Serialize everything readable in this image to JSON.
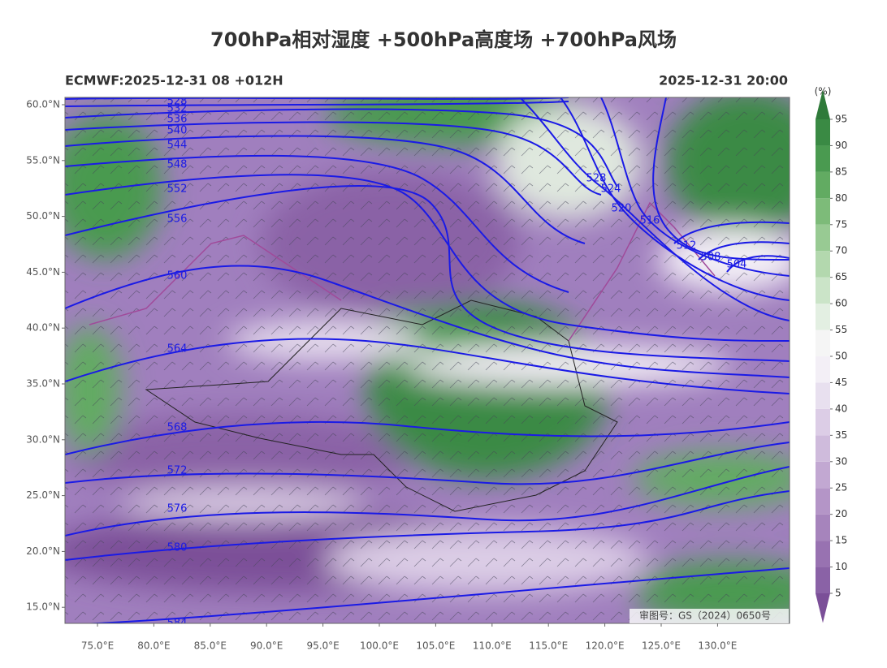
{
  "header": {
    "title": "700hPa相对湿度 +500hPa高度场 +700hPa风场",
    "left": "ECMWF:2025-12-31 08 +012H",
    "right": "2025-12-31 20:00"
  },
  "axes": {
    "lat_labels": [
      "60.0°N",
      "55.0°N",
      "50.0°N",
      "45.0°N",
      "40.0°N",
      "35.0°N",
      "30.0°N",
      "25.0°N",
      "20.0°N",
      "15.0°N"
    ],
    "lon_labels": [
      "75.0°E",
      "80.0°E",
      "85.0°E",
      "90.0°E",
      "95.0°E",
      "100.0°E",
      "105.0°E",
      "110.0°E",
      "115.0°E",
      "120.0°E",
      "125.0°E",
      "130.0°E"
    ]
  },
  "contours": [
    "528",
    "532",
    "536",
    "540",
    "544",
    "548",
    "552",
    "556",
    "560",
    "564",
    "568",
    "572",
    "576",
    "580",
    "584",
    "528",
    "524",
    "520",
    "516",
    "512",
    "508",
    "504"
  ],
  "colorbar": {
    "unit": "(%)",
    "ticks": [
      5,
      10,
      15,
      20,
      25,
      30,
      35,
      40,
      45,
      50,
      55,
      60,
      65,
      70,
      75,
      80,
      85,
      90,
      95
    ],
    "colors": [
      "#7b4f98",
      "#8a62a6",
      "#9872b1",
      "#a684bc",
      "#b495c7",
      "#c2a8d2",
      "#cfbbdc",
      "#dccde6",
      "#e8e0ef",
      "#f3eff6",
      "#f5f5f5",
      "#e3efe2",
      "#cbe4c8",
      "#b3d8ae",
      "#98ca93",
      "#7dbb79",
      "#62ab62",
      "#4a9a50",
      "#3a8a44",
      "#2f7a3a"
    ]
  },
  "watermark": "审图号：GS（2024）0650号"
}
